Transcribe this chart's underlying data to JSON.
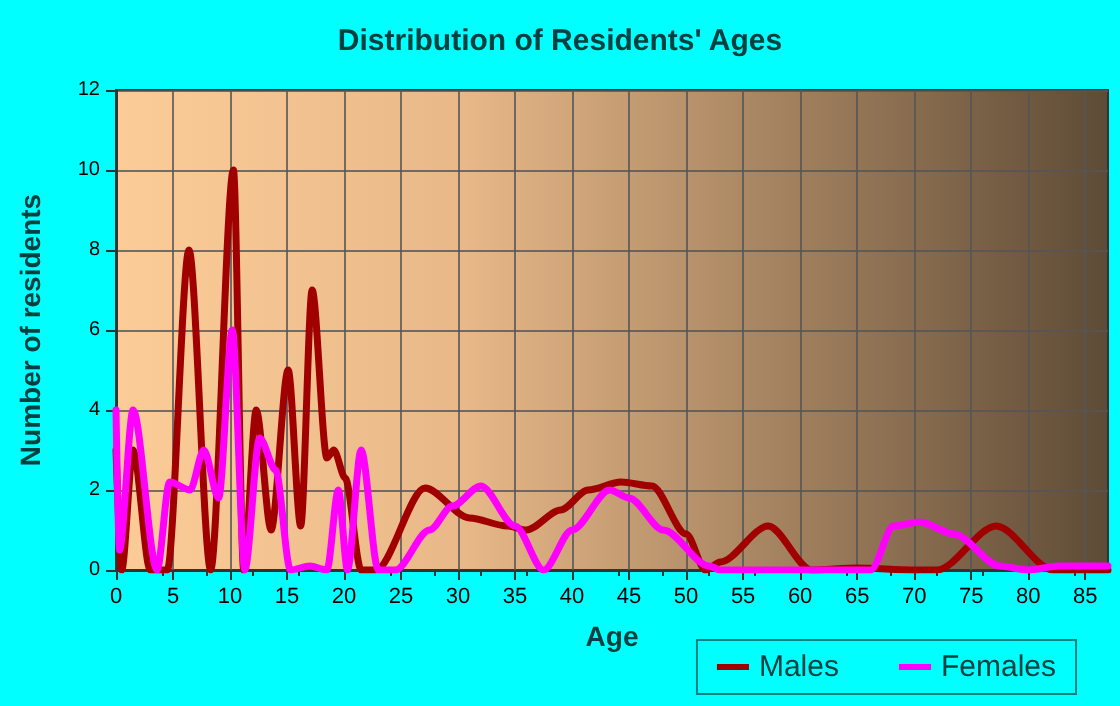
{
  "chart_data": {
    "type": "line",
    "title": "Distribution of Residents' Ages",
    "xlabel": "Age",
    "ylabel": "Number of residents",
    "xlim": [
      0,
      87
    ],
    "xticks": [
      0,
      5,
      10,
      15,
      20,
      25,
      30,
      35,
      40,
      45,
      50,
      55,
      60,
      65,
      70,
      75,
      80,
      85
    ],
    "ylim": [
      0,
      12
    ],
    "yticks": [
      0,
      2,
      4,
      6,
      8,
      10,
      12
    ],
    "grid": true,
    "legend": "bottom right",
    "marker": "none",
    "line_style": "solid",
    "series": [
      {
        "name": "Males",
        "color": "#a00000",
        "x": [
          0,
          0.5,
          1.5,
          3,
          4.5,
          6.4,
          8.3,
          10.3,
          11.2,
          12.3,
          13.6,
          15.1,
          16.2,
          17.2,
          18.5,
          19.1,
          20.1,
          21.5,
          22.8,
          27.1,
          31,
          34.3,
          36,
          39,
          41.4,
          44.3,
          47,
          50,
          51.7,
          53,
          57.2,
          61,
          65,
          70,
          72,
          77.2,
          82.2,
          87
        ],
        "values": [
          3,
          0,
          3,
          0,
          0,
          8,
          0,
          10,
          0,
          4,
          1,
          5,
          1.1,
          7,
          2.8,
          3,
          2.3,
          0,
          0,
          2.05,
          1.3,
          1.1,
          1,
          1.5,
          2,
          2.2,
          2.1,
          0.9,
          0,
          0.2,
          1.1,
          0,
          0.05,
          0,
          0,
          1.1,
          0,
          0
        ]
      },
      {
        "name": "Females",
        "color": "#ff00ff",
        "x": [
          0,
          0.3,
          1.5,
          3.6,
          4.7,
          6.5,
          7.7,
          9,
          10.2,
          11.3,
          12.6,
          14,
          15.3,
          17,
          18.5,
          19.5,
          20.3,
          21.5,
          23,
          24.5,
          27.5,
          29.5,
          32,
          35,
          37.5,
          40,
          43.3,
          45,
          48,
          52,
          53,
          66.2,
          68.2,
          70.5,
          73.5,
          77.5,
          80,
          82.7,
          87
        ],
        "values": [
          4,
          0.5,
          4,
          0,
          2.2,
          2,
          3,
          1.8,
          6,
          0,
          3.3,
          2.5,
          0,
          0.1,
          0,
          2,
          0,
          3,
          0,
          0,
          1,
          1.6,
          2.1,
          1.1,
          0,
          1,
          2,
          1.8,
          1,
          0.1,
          0,
          0,
          1.1,
          1.2,
          0.9,
          0.1,
          0,
          0.1,
          0.1
        ]
      }
    ]
  }
}
